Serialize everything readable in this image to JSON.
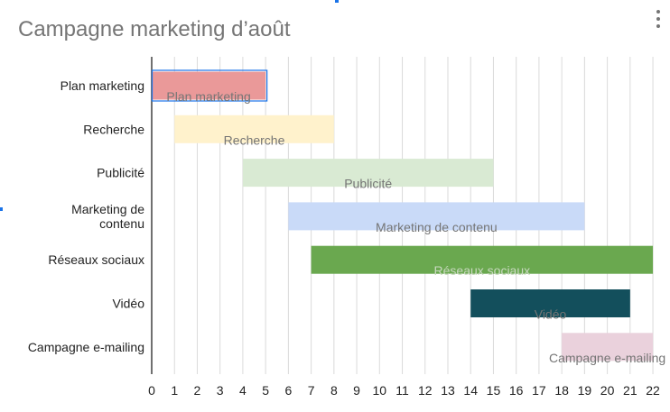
{
  "chart_title": "Campagne marketing d’août",
  "menu_icon": "more-vert-icon",
  "colors": {
    "title": "#757575",
    "grid": "#dadada",
    "axis": "#333333",
    "selection": "#1a73e8"
  },
  "chart_data": {
    "type": "gantt",
    "title": "Campagne marketing d’août",
    "xlim": [
      0,
      22
    ],
    "x_ticks": [
      "0",
      "1",
      "2",
      "3",
      "4",
      "5",
      "6",
      "7",
      "8",
      "9",
      "10",
      "11",
      "12",
      "13",
      "14",
      "15",
      "16",
      "17",
      "18",
      "19",
      "20",
      "21",
      "22"
    ],
    "grid": true,
    "tasks": [
      {
        "name": "Plan marketing",
        "bar_label": "Plan marketing",
        "start": 0,
        "end": 5,
        "color": "#ea9999",
        "label_color": "#757575",
        "selected": true
      },
      {
        "name": "Recherche",
        "bar_label": "Recherche",
        "start": 1,
        "end": 8,
        "color": "#fff2cc",
        "label_color": "#757575"
      },
      {
        "name": "Publicité",
        "bar_label": "Publicité",
        "start": 4,
        "end": 15,
        "color": "#d9ead3",
        "label_color": "#757575"
      },
      {
        "name": "Marketing de contenu",
        "y_label_lines": [
          "Marketing de",
          "contenu"
        ],
        "bar_label": "Marketing de contenu",
        "start": 6,
        "end": 19,
        "color": "#c9daf8",
        "label_color": "#757575"
      },
      {
        "name": "Réseaux sociaux",
        "bar_label": "Réseaux sociaux",
        "start": 7,
        "end": 22,
        "color": "#6aa84f",
        "label_color": "#c9d9c0"
      },
      {
        "name": "Vidéo",
        "bar_label": "Vidéo",
        "start": 14,
        "end": 21,
        "color": "#134f5c",
        "label_color": "#757575"
      },
      {
        "name": "Campagne e-mailing",
        "bar_label": "Campagne e-mailing",
        "start": 18,
        "end": 22,
        "color": "#ead1dc",
        "label_color": "#757575"
      }
    ]
  }
}
